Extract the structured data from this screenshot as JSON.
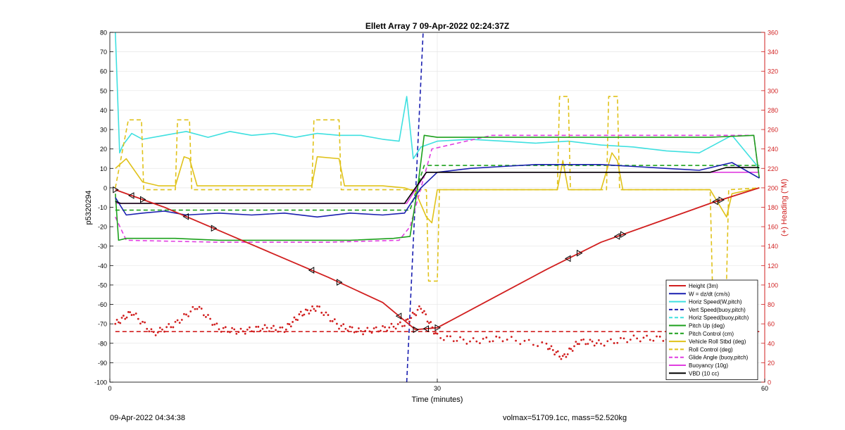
{
  "chart_data": {
    "type": "line",
    "title": "Ellett Array 7 09-Apr-2022 02:24:37Z",
    "xlabel": "Time (minutes)",
    "ylabel": "p5320294",
    "y2label": "(+) Heading (°M)",
    "xlim": [
      0,
      60
    ],
    "ylim": [
      -100,
      80
    ],
    "y2lim": [
      0,
      360
    ],
    "xticks": [
      0,
      30,
      60
    ],
    "yticks": [
      -100,
      -90,
      -80,
      -70,
      -60,
      -50,
      -40,
      -30,
      -20,
      -10,
      0,
      10,
      20,
      30,
      40,
      50,
      60,
      70,
      80
    ],
    "y2ticks": [
      0,
      20,
      40,
      60,
      80,
      100,
      120,
      140,
      160,
      180,
      200,
      220,
      240,
      260,
      280,
      300,
      320,
      340,
      360
    ],
    "grid": true,
    "legend_position": "bottom-right",
    "colors": {
      "red": "#d11f1f",
      "blue": "#1a1fb0",
      "cyan": "#3fe0e0",
      "green": "#1ca01c",
      "yellow": "#e0c21a",
      "magenta": "#e03ee0",
      "black": "#000000",
      "y2axis": "#d11f1f"
    },
    "legend": [
      {
        "label": "Height (3m)",
        "color": "#d11f1f",
        "style": "solid"
      },
      {
        "label": "W = dz/dt (cm/s)",
        "color": "#1a1fb0",
        "style": "solid"
      },
      {
        "label": "Horiz Speed(W,pitch)",
        "color": "#3fe0e0",
        "style": "solid"
      },
      {
        "label": "Vert Speed(buoy,pitch)",
        "color": "#1a1fb0",
        "style": "dashed"
      },
      {
        "label": "Horiz Speed(buoy,pitch)",
        "color": "#3fe0e0",
        "style": "dashed"
      },
      {
        "label": "Pitch Up (deg)",
        "color": "#1ca01c",
        "style": "solid"
      },
      {
        "label": "Pitch Control (cm)",
        "color": "#1ca01c",
        "style": "dashed"
      },
      {
        "label": "Vehicle Roll Stbd (deg)",
        "color": "#e0c21a",
        "style": "solid"
      },
      {
        "label": "Roll Control (deg)",
        "color": "#e0c21a",
        "style": "dashed"
      },
      {
        "label": "Glide Angle (buoy,pitch)",
        "color": "#e03ee0",
        "style": "dashed"
      },
      {
        "label": "Buoyancy (10g)",
        "color": "#e03ee0",
        "style": "solid"
      },
      {
        "label": "VBD (10 cc)",
        "color": "#000000",
        "style": "solid"
      }
    ],
    "series": [
      {
        "name": "Height (3m)",
        "color": "#d11f1f",
        "style": "solid",
        "axis": "left",
        "x": [
          0.5,
          5,
          10,
          15,
          20,
          25,
          28,
          30,
          35,
          40,
          45,
          50,
          55,
          59.5
        ],
        "y": [
          -1,
          -10,
          -22,
          -34,
          -46,
          -59,
          -73,
          -72,
          -57,
          -42,
          -28,
          -18,
          -8,
          0
        ]
      },
      {
        "name": "W = dz/dt (cm/s)",
        "color": "#1a1fb0",
        "style": "solid",
        "axis": "left",
        "x": [
          0.5,
          1.5,
          3,
          5,
          7,
          10,
          13,
          16,
          19,
          22,
          25,
          27,
          28.5,
          30,
          33,
          36,
          39,
          42,
          45,
          48,
          51,
          54,
          57,
          59.5
        ],
        "y": [
          -5,
          -14,
          -13,
          -12,
          -14,
          -13,
          -14,
          -13,
          -15,
          -13,
          -14,
          -13,
          0,
          8,
          10,
          11,
          12,
          12,
          12,
          11,
          10,
          9,
          13,
          5
        ]
      },
      {
        "name": "Horiz Speed(W,pitch)",
        "color": "#3fe0e0",
        "style": "solid",
        "axis": "left",
        "x": [
          0.5,
          0.9,
          1.2,
          2,
          3,
          5,
          7,
          9,
          11,
          13,
          15,
          17,
          19,
          21,
          23,
          25,
          26.5,
          27.2,
          27.8,
          28.5,
          30,
          33,
          36,
          39,
          42,
          45,
          48,
          51,
          54,
          57,
          59.5
        ],
        "y": [
          80,
          18,
          22,
          28,
          25,
          27,
          29,
          26,
          29,
          27,
          28,
          26,
          28,
          27,
          27,
          25,
          24,
          47,
          15,
          21,
          24,
          25,
          24,
          23,
          24,
          22,
          21,
          19,
          18,
          27,
          10
        ]
      },
      {
        "name": "Vert Speed(buoy,pitch)",
        "color": "#1a1fb0",
        "style": "dashed",
        "axis": "left",
        "x": [
          27.2,
          28.7
        ],
        "y": [
          -100,
          80
        ]
      },
      {
        "name": "Pitch Up (deg)",
        "color": "#1ca01c",
        "style": "solid",
        "axis": "left",
        "x": [
          0.5,
          0.8,
          1.5,
          3,
          6,
          10,
          14,
          18,
          22,
          26,
          27.5,
          28.2,
          28.8,
          30,
          35,
          40,
          45,
          50,
          55,
          59,
          59.5
        ],
        "y": [
          -3,
          -27,
          -26,
          -26,
          -26,
          -27,
          -27,
          -27,
          -27,
          -26,
          -25,
          0,
          27,
          26,
          26,
          26,
          26,
          26,
          26,
          27,
          5
        ]
      },
      {
        "name": "Pitch Control (cm)",
        "color": "#1ca01c",
        "style": "dashed",
        "axis": "left",
        "x": [
          0.5,
          27.5,
          28.8,
          59.5
        ],
        "y": [
          -11.5,
          -11.5,
          11.5,
          11.5
        ]
      },
      {
        "name": "Vehicle Roll Stbd (deg)",
        "color": "#e0c21a",
        "style": "solid",
        "axis": "left",
        "x": [
          0.5,
          1.5,
          3,
          4.5,
          6,
          6.8,
          7.3,
          8,
          12,
          16,
          18.5,
          19,
          21,
          21.5,
          25,
          27,
          28,
          29,
          29.5,
          30,
          35,
          41,
          41.5,
          42,
          45,
          46,
          46.5,
          47,
          55,
          56.5,
          57,
          59.5
        ],
        "y": [
          10,
          15,
          3,
          1,
          1,
          16,
          15,
          1,
          1,
          1,
          1,
          16,
          15,
          1,
          1,
          0,
          -2,
          -15,
          -18,
          -1,
          -1,
          -1,
          14,
          -1,
          -1,
          18,
          14,
          -1,
          -1,
          -15,
          -3,
          0
        ]
      },
      {
        "name": "Roll Control (deg)",
        "color": "#e0c21a",
        "style": "dashed",
        "axis": "left",
        "x": [
          0.5,
          1.7,
          2.9,
          3.1,
          6,
          6.2,
          7.3,
          7.5,
          18.5,
          18.7,
          21,
          21.2,
          27.5,
          29,
          29.2,
          30,
          30.2,
          41,
          41.2,
          42,
          42.2,
          45.5,
          45.7,
          46.5,
          46.7,
          55,
          55.2,
          56.5,
          56.7,
          59.5
        ],
        "y": [
          0,
          35,
          35,
          -1,
          -1,
          35,
          35,
          -1,
          -1,
          35,
          35,
          -1,
          -1,
          -1,
          -48,
          -48,
          -1,
          -1,
          47,
          47,
          -1,
          -1,
          47,
          47,
          -1,
          -1,
          -48,
          -48,
          -1,
          0
        ]
      },
      {
        "name": "Glide Angle (buoy,pitch)",
        "color": "#e03ee0",
        "style": "dashed",
        "axis": "left",
        "x": [
          0.5,
          1.5,
          10,
          20,
          26.5,
          27.5,
          29.5,
          35,
          45,
          55,
          59,
          59.5
        ],
        "y": [
          -15,
          -27,
          -28,
          -28,
          -27,
          -20,
          20,
          27,
          27,
          27,
          27,
          5
        ]
      },
      {
        "name": "Buoyancy (10g)",
        "color": "#e03ee0",
        "style": "solid",
        "axis": "left",
        "x": [
          0.5,
          1,
          8,
          27.2,
          29,
          59.5
        ],
        "y": [
          -8,
          -8,
          -8,
          -8,
          8,
          8
        ]
      },
      {
        "name": "VBD (10 cc)",
        "color": "#000000",
        "style": "solid",
        "axis": "left",
        "x": [
          0.5,
          1,
          27,
          29,
          30,
          47,
          55,
          56.5,
          59.5
        ],
        "y": [
          -7,
          -8,
          -8,
          8,
          8,
          8,
          8,
          10.5,
          10.5
        ]
      },
      {
        "name": "Heading",
        "color": "#d11f1f",
        "style": "dotted",
        "axis": "right",
        "x": [
          0.5,
          2,
          4,
          6,
          8,
          10,
          12,
          14,
          16,
          17.5,
          19,
          21,
          23,
          25,
          27,
          28.5,
          30,
          33,
          36,
          40,
          41.5,
          43,
          45,
          48,
          51,
          54,
          57,
          59.5
        ],
        "y": [
          60,
          72,
          50,
          60,
          78,
          55,
          52,
          56,
          54,
          70,
          77,
          58,
          52,
          55,
          60,
          77,
          47,
          42,
          45,
          38,
          25,
          42,
          40,
          45,
          45,
          48,
          50,
          60
        ]
      },
      {
        "name": "Heading Target",
        "color": "#d11f1f",
        "style": "dashed",
        "axis": "right",
        "x": [
          0.5,
          59.5
        ],
        "y": [
          52,
          52
        ]
      }
    ]
  },
  "footer": {
    "left": "09-Apr-2022 04:34:38",
    "right": "volmax=51709.1cc, mass=52.520kg"
  }
}
